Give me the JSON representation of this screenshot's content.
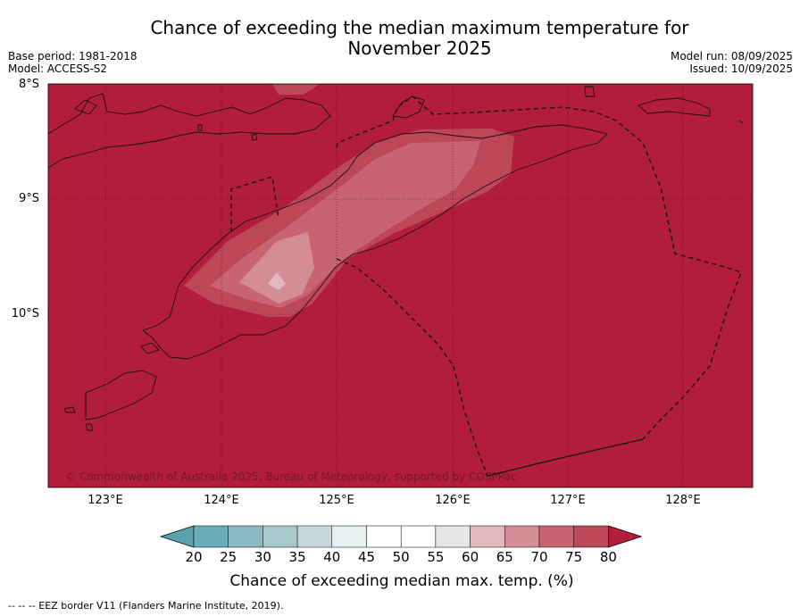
{
  "title": "Chance of exceeding the median maximum temperature for November 2025",
  "meta_left": {
    "base_period": "Base period: 1981-2018",
    "model": "Model: ACCESS-S2"
  },
  "meta_right": {
    "model_run": "Model run: 08/09/2025",
    "issued": "Issued: 10/09/2025"
  },
  "map": {
    "lat_labels": [
      "8°S",
      "9°S",
      "10°S"
    ],
    "lon_labels": [
      "123°E",
      "124°E",
      "125°E",
      "126°E",
      "127°E",
      "128°E"
    ],
    "credit": "© Commonwealth of Australia 2025, Bureau of Meteorology, supported by COSPPac",
    "background_class_color": "#b21d3a"
  },
  "colorbar": {
    "label": "Chance of exceeding median max. temp. (%)",
    "ticks": [
      "20",
      "25",
      "30",
      "35",
      "40",
      "45",
      "50",
      "55",
      "60",
      "65",
      "70",
      "75",
      "80"
    ],
    "colors": [
      "#6aacb8",
      "#8ab8c3",
      "#a8c8cc",
      "#c8d8da",
      "#e8f0f2",
      "#ffffff",
      "#ffffff",
      "#e6e6e6",
      "#e2b8bf",
      "#d48c96",
      "#c8646f",
      "#bc4857"
    ],
    "under_color": "#5aa2ae",
    "over_color": "#b21d3a"
  },
  "footer": "--  --  -- EEZ border V11 (Flanders Marine Institute, 2019)."
}
